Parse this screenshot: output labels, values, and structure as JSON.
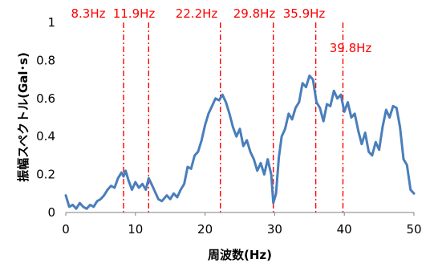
{
  "colors": {
    "series": "#4a7ebb",
    "markers": "#ff0000",
    "axis": "#7f7f7f",
    "background": "#ffffff"
  },
  "chart_data": {
    "type": "line",
    "title": "",
    "xlabel": "周波数(Hz)",
    "ylabel": "振幅スペクトル(Gal･s)",
    "xlim": [
      0,
      50
    ],
    "ylim": [
      0,
      1
    ],
    "grid": false,
    "legend": "none",
    "x_ticks": [
      "0",
      "10",
      "20",
      "30",
      "40",
      "50"
    ],
    "y_ticks": [
      "0",
      "0.2",
      "0.4",
      "0.6",
      "0.8",
      "1"
    ],
    "peak_markers": [
      {
        "x": 8.3,
        "label": "8.3Hz"
      },
      {
        "x": 11.9,
        "label": "11.9Hz"
      },
      {
        "x": 22.2,
        "label": "22.2Hz"
      },
      {
        "x": 29.8,
        "label": "29.8Hz"
      },
      {
        "x": 35.9,
        "label": "35.9Hz"
      },
      {
        "x": 39.8,
        "label": "39.8Hz"
      }
    ],
    "series": [
      {
        "x": [
          0,
          0.5,
          1,
          1.5,
          2,
          2.5,
          3,
          3.5,
          4,
          4.5,
          5,
          5.5,
          6,
          6.5,
          7,
          7.5,
          8,
          8.3,
          8.6,
          9,
          9.5,
          10,
          10.5,
          11,
          11.5,
          11.9,
          12.3,
          12.8,
          13.3,
          13.8,
          14.5,
          15,
          15.5,
          16,
          16.5,
          17,
          17.5,
          18,
          18.5,
          19,
          19.5,
          20,
          20.5,
          21,
          21.5,
          22,
          22.5,
          23,
          23.5,
          24,
          24.5,
          25,
          25.5,
          26,
          26.5,
          27,
          27.5,
          28,
          28.5,
          29,
          29.5,
          29.8,
          30.2,
          30.6,
          31,
          31.5,
          32,
          32.5,
          33,
          33.5,
          34,
          34.5,
          35,
          35.5,
          36,
          36.5,
          37,
          37.5,
          38,
          38.5,
          39,
          39.5,
          40,
          40.5,
          41,
          41.5,
          42,
          42.5,
          43,
          43.5,
          44,
          44.5,
          45,
          45.5,
          46,
          46.5,
          47,
          47.5,
          48,
          48.5,
          49,
          49.5,
          50
        ],
        "y": [
          0.09,
          0.03,
          0.04,
          0.02,
          0.05,
          0.03,
          0.02,
          0.04,
          0.03,
          0.06,
          0.07,
          0.09,
          0.12,
          0.14,
          0.13,
          0.18,
          0.21,
          0.19,
          0.22,
          0.17,
          0.12,
          0.16,
          0.13,
          0.15,
          0.12,
          0.18,
          0.15,
          0.11,
          0.07,
          0.06,
          0.09,
          0.07,
          0.1,
          0.08,
          0.12,
          0.15,
          0.24,
          0.23,
          0.3,
          0.32,
          0.38,
          0.46,
          0.52,
          0.56,
          0.6,
          0.59,
          0.62,
          0.58,
          0.52,
          0.45,
          0.4,
          0.44,
          0.35,
          0.38,
          0.32,
          0.28,
          0.22,
          0.26,
          0.2,
          0.28,
          0.2,
          0.05,
          0.1,
          0.29,
          0.4,
          0.44,
          0.52,
          0.49,
          0.55,
          0.58,
          0.68,
          0.66,
          0.72,
          0.7,
          0.58,
          0.55,
          0.48,
          0.57,
          0.56,
          0.64,
          0.6,
          0.62,
          0.53,
          0.58,
          0.5,
          0.52,
          0.43,
          0.36,
          0.42,
          0.32,
          0.3,
          0.37,
          0.33,
          0.45,
          0.54,
          0.5,
          0.56,
          0.55,
          0.45,
          0.28,
          0.25,
          0.12,
          0.1
        ]
      }
    ]
  }
}
